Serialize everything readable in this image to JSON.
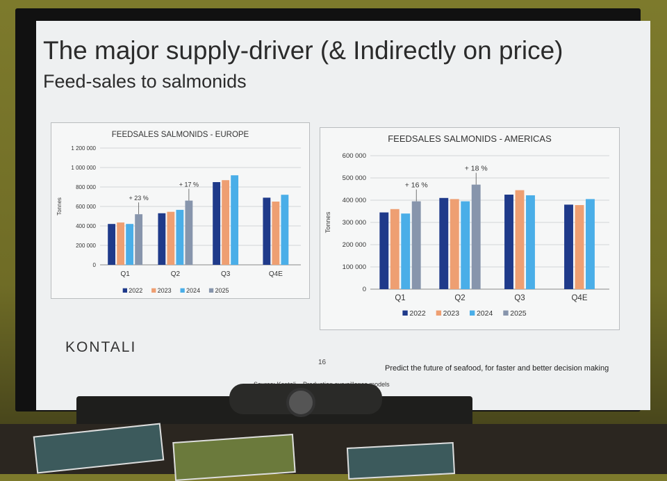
{
  "slide": {
    "title": "The major supply-driver (& Indirectly on price)",
    "subtitle": "Feed-sales to salmonids",
    "logo": "KONTALI",
    "page_number": "16",
    "tagline": "Predict the future of seafood, for faster and better decision making",
    "source": "Source: Kontali – Production surveillance models"
  },
  "colors": {
    "2022": "#1f3a8a",
    "2023": "#ee9f72",
    "2024": "#4aaee8",
    "2025": "#8795ac"
  },
  "chart_data": [
    {
      "type": "bar",
      "title": "FEEDSALES SALMONIDS  - EUROPE",
      "ylabel": "Tonnes",
      "categories": [
        "Q1",
        "Q2",
        "Q3",
        "Q4E"
      ],
      "ylim": [
        0,
        1200000
      ],
      "yticks": [
        0,
        200000,
        400000,
        600000,
        800000,
        1000000,
        1200000
      ],
      "ytick_labels": [
        "0",
        "200 000",
        "400 000",
        "600 000",
        "800 000",
        "1 000 000",
        "1 200 000"
      ],
      "grid": true,
      "legend_position": "bottom",
      "series": [
        {
          "name": "2022",
          "values": [
            420000,
            530000,
            850000,
            690000
          ]
        },
        {
          "name": "2023",
          "values": [
            435000,
            545000,
            870000,
            650000
          ]
        },
        {
          "name": "2024",
          "values": [
            420000,
            565000,
            920000,
            720000
          ]
        },
        {
          "name": "2025",
          "values": [
            520000,
            660000,
            null,
            null
          ]
        }
      ],
      "annotations": [
        {
          "text": "+ 23 %",
          "category": "Q1"
        },
        {
          "text": "+ 17 %",
          "category": "Q2"
        }
      ]
    },
    {
      "type": "bar",
      "title": "FEEDSALES SALMONIDS  - AMERICAS",
      "ylabel": "Tonnes",
      "categories": [
        "Q1",
        "Q2",
        "Q3",
        "Q4E"
      ],
      "ylim": [
        0,
        600000
      ],
      "yticks": [
        0,
        100000,
        200000,
        300000,
        400000,
        500000,
        600000
      ],
      "ytick_labels": [
        "0",
        "100 000",
        "200 000",
        "300 000",
        "400 000",
        "500 000",
        "600 000"
      ],
      "grid": true,
      "legend_position": "bottom",
      "series": [
        {
          "name": "2022",
          "values": [
            345000,
            410000,
            425000,
            380000
          ]
        },
        {
          "name": "2023",
          "values": [
            360000,
            405000,
            445000,
            378000
          ]
        },
        {
          "name": "2024",
          "values": [
            340000,
            395000,
            422000,
            405000
          ]
        },
        {
          "name": "2025",
          "values": [
            395000,
            470000,
            null,
            null
          ]
        }
      ],
      "annotations": [
        {
          "text": "+ 16 %",
          "category": "Q1"
        },
        {
          "text": "+ 18 %",
          "category": "Q2"
        }
      ]
    }
  ]
}
